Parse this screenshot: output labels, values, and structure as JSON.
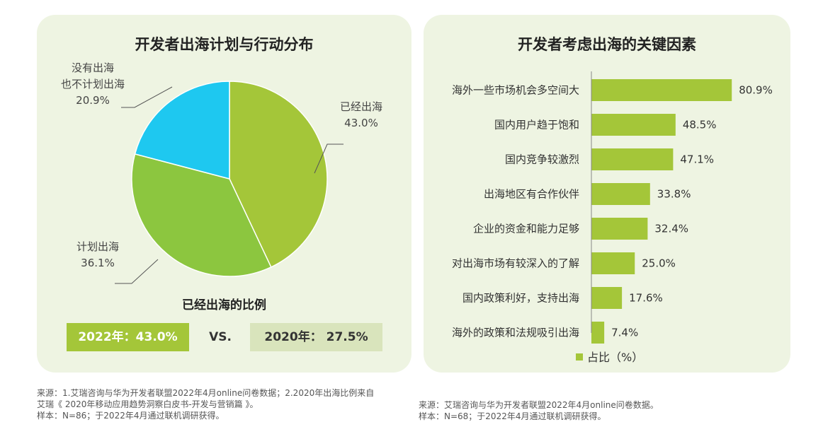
{
  "left": {
    "title": "开发者出海计划与行动分布",
    "pie_labels": [
      {
        "line1": "没有出海",
        "line2": "也不计划出海",
        "line3": "20.9%"
      },
      {
        "line1": "已经出海",
        "line2": "43.0%"
      },
      {
        "line1": "计划出海",
        "line2": "36.1%"
      }
    ],
    "subtitle": "已经出海的比例",
    "box_2022": "2022年：43.0%",
    "vs": "VS.",
    "box_2020": "2020年： 27.5%"
  },
  "right": {
    "title": "开发者考虑出海的关键因素",
    "legend": "占比（%）"
  },
  "sources": {
    "left_line1": "来源：1.艾瑞咨询与华为开发者联盟2022年4月online问卷数据；2.2020年出海比例来自",
    "left_line2": "艾瑞《 2020年移动应用趋势洞察白皮书-开发与营销篇 》。",
    "left_line3": "样本：N=86；于2022年4月通过联机调研获得。",
    "right_line1": "来源：艾瑞咨询与华为开发者联盟2022年4月online问卷数据。",
    "right_line2": "样本：N=68；于2022年4月通过联机调研获得。"
  },
  "colors": {
    "green_dark": "#a4c639",
    "green_mid": "#8cc63f",
    "blue": "#1ec8f0",
    "panel_bg": "#eef4e2"
  },
  "chart_data": [
    {
      "type": "pie",
      "title": "开发者出海计划与行动分布",
      "labels": [
        "已经出海",
        "计划出海",
        "没有出海 也不计划出海"
      ],
      "values": [
        43.0,
        36.1,
        20.9
      ],
      "colors": [
        "#a4c639",
        "#8cc63f",
        "#1ec8f0"
      ]
    },
    {
      "type": "bar",
      "orientation": "horizontal",
      "title": "开发者考虑出海的关键因素",
      "categories": [
        "海外一些市场机会多空间大",
        "国内用户趋于饱和",
        "国内竞争较激烈",
        "出海地区有合作伙伴",
        "企业的资金和能力足够",
        "对出海市场有较深入的了解",
        "国内政策利好，支持出海",
        "海外的政策和法规吸引出海"
      ],
      "series": [
        {
          "name": "占比（%）",
          "values": [
            80.9,
            48.5,
            47.1,
            33.8,
            32.4,
            25.0,
            17.6,
            7.4
          ]
        }
      ],
      "value_labels": [
        "80.9%",
        "48.5%",
        "47.1%",
        "33.8%",
        "32.4%",
        "25.0%",
        "17.6%",
        "7.4%"
      ],
      "xlim": [
        0,
        100
      ]
    }
  ]
}
